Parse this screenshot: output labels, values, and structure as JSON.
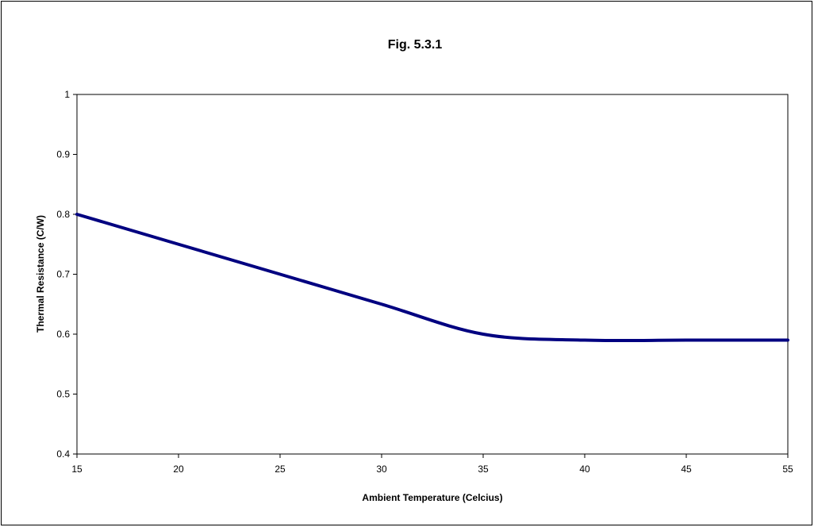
{
  "chart_data": {
    "type": "line",
    "title": "Fig. 5.3.1",
    "xlabel": "Ambient Temperature (Celcius)",
    "ylabel": "Thermal Resistance (C/W)",
    "xlim": [
      15,
      55
    ],
    "ylim": [
      0.4,
      1.0
    ],
    "x_ticks": [
      "15",
      "20",
      "25",
      "30",
      "35",
      "40",
      "45",
      "55"
    ],
    "y_ticks": [
      "0.4",
      "0.5",
      "0.6",
      "0.7",
      "0.8",
      "0.9",
      "1"
    ],
    "grid": false,
    "legend": "none",
    "series": [
      {
        "color": "#000080",
        "points": [
          [
            15,
            0.8
          ],
          [
            20,
            0.75
          ],
          [
            25,
            0.7
          ],
          [
            30,
            0.65
          ],
          [
            35,
            0.6
          ],
          [
            40,
            0.59
          ],
          [
            45,
            0.59
          ],
          [
            55,
            0.59
          ]
        ]
      }
    ]
  }
}
